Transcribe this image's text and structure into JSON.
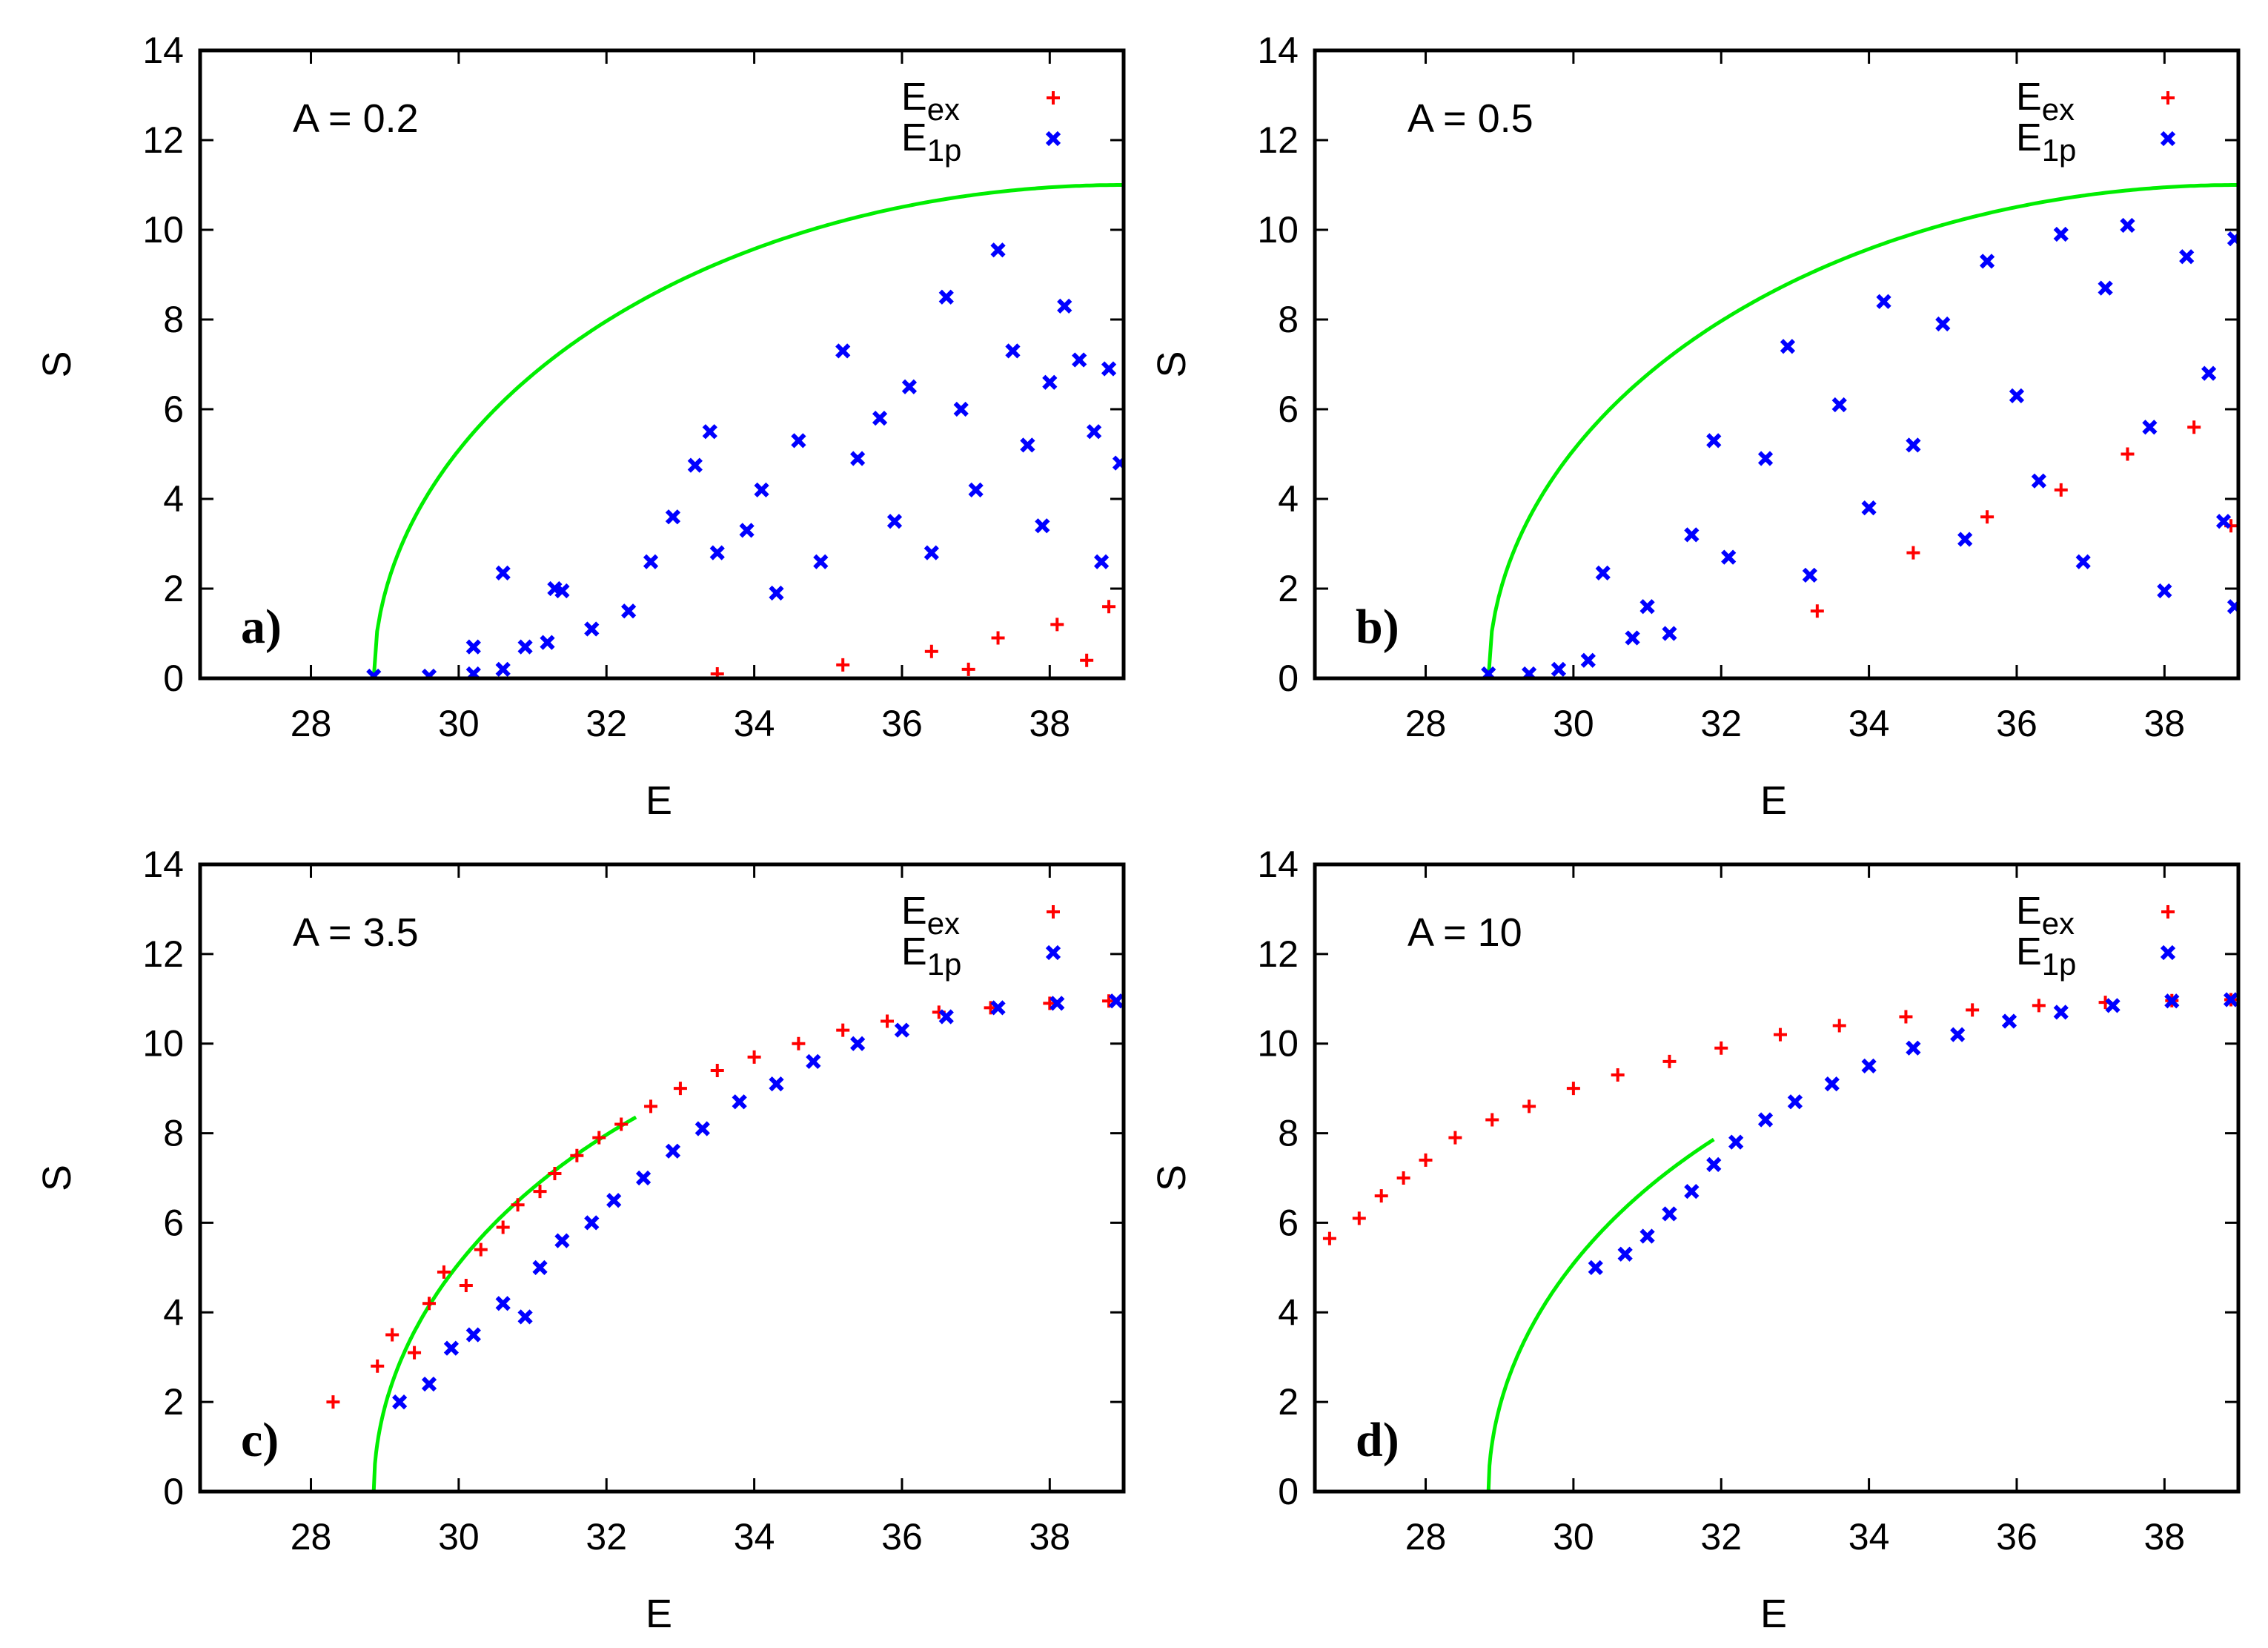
{
  "figure": {
    "description_axes": "S versus E scatter plots for four values of A"
  },
  "chart_data": [
    {
      "type": "scatter",
      "panel_label": "a)",
      "annotation": "A = 0.2",
      "xlabel": "E",
      "ylabel": "S",
      "xlim": [
        26.5,
        39
      ],
      "ylim": [
        0,
        14
      ],
      "xticks": [
        "28",
        "30",
        "32",
        "34",
        "36",
        "38"
      ],
      "yticks": [
        "0",
        "2",
        "4",
        "6",
        "8",
        "10",
        "12",
        "14"
      ],
      "legend_position": "top-right",
      "colors": {
        "exact": "#ff0000",
        "one_particle": "#0000ff",
        "bound": "#00ee00"
      },
      "bound_curve": {
        "name": "bound",
        "E0": 28.85,
        "E1": 39,
        "Smax": 11
      },
      "series": [
        {
          "name": "E_ex",
          "label": "E",
          "sub": "ex",
          "points": [
            [
              33.5,
              0.1
            ],
            [
              35.2,
              0.3
            ],
            [
              36.4,
              0.6
            ],
            [
              37.3,
              0.9
            ],
            [
              38.1,
              1.2
            ],
            [
              38.8,
              1.6
            ],
            [
              36.9,
              0.2
            ],
            [
              38.5,
              0.4
            ]
          ]
        },
        {
          "name": "E_1p",
          "label": "E",
          "sub": "1p",
          "points": [
            [
              28.85,
              0.05
            ],
            [
              29.6,
              0.05
            ],
            [
              30.2,
              0.1
            ],
            [
              30.6,
              0.2
            ],
            [
              30.2,
              0.7
            ],
            [
              30.6,
              2.35
            ],
            [
              30.9,
              0.7
            ],
            [
              31.2,
              0.8
            ],
            [
              31.3,
              2.0
            ],
            [
              31.4,
              1.95
            ],
            [
              31.8,
              1.1
            ],
            [
              32.3,
              1.5
            ],
            [
              32.6,
              2.6
            ],
            [
              32.9,
              3.6
            ],
            [
              33.2,
              4.75
            ],
            [
              33.4,
              5.5
            ],
            [
              33.5,
              2.8
            ],
            [
              33.9,
              3.3
            ],
            [
              34.1,
              4.2
            ],
            [
              34.3,
              1.9
            ],
            [
              34.6,
              5.3
            ],
            [
              34.9,
              2.6
            ],
            [
              35.2,
              7.3
            ],
            [
              35.4,
              4.9
            ],
            [
              35.7,
              5.8
            ],
            [
              35.9,
              3.5
            ],
            [
              36.1,
              6.5
            ],
            [
              36.4,
              2.8
            ],
            [
              36.6,
              8.5
            ],
            [
              36.8,
              6.0
            ],
            [
              37.0,
              4.2
            ],
            [
              37.3,
              9.55
            ],
            [
              37.5,
              7.3
            ],
            [
              37.7,
              5.2
            ],
            [
              37.9,
              3.4
            ],
            [
              38.0,
              6.6
            ],
            [
              38.2,
              8.3
            ],
            [
              38.4,
              7.1
            ],
            [
              38.6,
              5.5
            ],
            [
              38.8,
              6.9
            ],
            [
              38.95,
              4.8
            ],
            [
              38.7,
              2.6
            ]
          ]
        }
      ]
    },
    {
      "type": "scatter",
      "panel_label": "b)",
      "annotation": "A = 0.5",
      "xlabel": "E",
      "ylabel": "S",
      "xlim": [
        26.5,
        39
      ],
      "ylim": [
        0,
        14
      ],
      "xticks": [
        "28",
        "30",
        "32",
        "34",
        "36",
        "38"
      ],
      "yticks": [
        "0",
        "2",
        "4",
        "6",
        "8",
        "10",
        "12",
        "14"
      ],
      "legend_position": "top-right",
      "colors": {
        "exact": "#ff0000",
        "one_particle": "#0000ff",
        "bound": "#00ee00"
      },
      "bound_curve": {
        "name": "bound",
        "E0": 28.85,
        "E1": 39,
        "Smax": 11
      },
      "series": [
        {
          "name": "E_ex",
          "label": "E",
          "sub": "ex",
          "points": [
            [
              33.3,
              1.5
            ],
            [
              34.6,
              2.8
            ],
            [
              35.6,
              3.6
            ],
            [
              36.6,
              4.2
            ],
            [
              37.5,
              5.0
            ],
            [
              38.4,
              5.6
            ],
            [
              38.9,
              3.4
            ]
          ]
        },
        {
          "name": "E_1p",
          "label": "E",
          "sub": "1p",
          "points": [
            [
              28.85,
              0.1
            ],
            [
              29.4,
              0.1
            ],
            [
              29.8,
              0.2
            ],
            [
              30.2,
              0.4
            ],
            [
              30.4,
              2.35
            ],
            [
              30.8,
              0.9
            ],
            [
              31.0,
              1.6
            ],
            [
              31.3,
              1.0
            ],
            [
              31.6,
              3.2
            ],
            [
              31.9,
              5.3
            ],
            [
              32.1,
              2.7
            ],
            [
              32.6,
              4.9
            ],
            [
              32.9,
              7.4
            ],
            [
              33.2,
              2.3
            ],
            [
              33.6,
              6.1
            ],
            [
              34.0,
              3.8
            ],
            [
              34.2,
              8.4
            ],
            [
              34.6,
              5.2
            ],
            [
              35.0,
              7.9
            ],
            [
              35.3,
              3.1
            ],
            [
              35.6,
              9.3
            ],
            [
              36.0,
              6.3
            ],
            [
              36.3,
              4.4
            ],
            [
              36.6,
              9.9
            ],
            [
              36.9,
              2.6
            ],
            [
              37.2,
              8.7
            ],
            [
              37.5,
              10.1
            ],
            [
              37.8,
              5.6
            ],
            [
              38.0,
              1.95
            ],
            [
              38.3,
              9.4
            ],
            [
              38.6,
              6.8
            ],
            [
              38.8,
              3.5
            ],
            [
              38.95,
              1.6
            ],
            [
              38.95,
              9.8
            ]
          ]
        }
      ]
    },
    {
      "type": "scatter",
      "panel_label": "c)",
      "annotation": "A = 3.5",
      "xlabel": "E",
      "ylabel": "S",
      "xlim": [
        26.5,
        39
      ],
      "ylim": [
        0,
        14
      ],
      "xticks": [
        "28",
        "30",
        "32",
        "34",
        "36",
        "38"
      ],
      "yticks": [
        "0",
        "2",
        "4",
        "6",
        "8",
        "10",
        "12",
        "14"
      ],
      "legend_position": "top-right",
      "colors": {
        "exact": "#ff0000",
        "one_particle": "#0000ff",
        "bound": "#00ee00"
      },
      "bound_curve": {
        "name": "bound",
        "E0": 28.85,
        "E1": 39,
        "Smax": 11,
        "until": 32.4
      },
      "series": [
        {
          "name": "E_ex",
          "label": "E",
          "sub": "ex",
          "points": [
            [
              28.3,
              2.0
            ],
            [
              28.9,
              2.8
            ],
            [
              29.1,
              3.5
            ],
            [
              29.4,
              3.1
            ],
            [
              29.6,
              4.2
            ],
            [
              29.8,
              4.9
            ],
            [
              30.1,
              4.6
            ],
            [
              30.3,
              5.4
            ],
            [
              30.6,
              5.9
            ],
            [
              30.8,
              6.4
            ],
            [
              31.1,
              6.7
            ],
            [
              31.3,
              7.1
            ],
            [
              31.6,
              7.5
            ],
            [
              31.9,
              7.9
            ],
            [
              32.2,
              8.2
            ],
            [
              32.6,
              8.6
            ],
            [
              33.0,
              9.0
            ],
            [
              33.5,
              9.4
            ],
            [
              34.0,
              9.7
            ],
            [
              34.6,
              10.0
            ],
            [
              35.2,
              10.3
            ],
            [
              35.8,
              10.5
            ],
            [
              36.5,
              10.7
            ],
            [
              37.2,
              10.8
            ],
            [
              38.0,
              10.9
            ],
            [
              38.8,
              10.95
            ]
          ]
        },
        {
          "name": "E_1p",
          "label": "E",
          "sub": "1p",
          "points": [
            [
              29.2,
              2.0
            ],
            [
              29.6,
              2.4
            ],
            [
              29.9,
              3.2
            ],
            [
              30.2,
              3.5
            ],
            [
              30.6,
              4.2
            ],
            [
              30.9,
              3.9
            ],
            [
              31.1,
              5.0
            ],
            [
              31.4,
              5.6
            ],
            [
              31.8,
              6.0
            ],
            [
              32.1,
              6.5
            ],
            [
              32.5,
              7.0
            ],
            [
              32.9,
              7.6
            ],
            [
              33.3,
              8.1
            ],
            [
              33.8,
              8.7
            ],
            [
              34.3,
              9.1
            ],
            [
              34.8,
              9.6
            ],
            [
              35.4,
              10.0
            ],
            [
              36.0,
              10.3
            ],
            [
              36.6,
              10.6
            ],
            [
              37.3,
              10.8
            ],
            [
              38.1,
              10.9
            ],
            [
              38.9,
              10.95
            ]
          ]
        }
      ]
    },
    {
      "type": "scatter",
      "panel_label": "d)",
      "annotation": "A = 10",
      "xlabel": "E",
      "ylabel": "S",
      "xlim": [
        26.5,
        39
      ],
      "ylim": [
        0,
        14
      ],
      "xticks": [
        "28",
        "30",
        "32",
        "34",
        "36",
        "38"
      ],
      "yticks": [
        "0",
        "2",
        "4",
        "6",
        "8",
        "10",
        "12",
        "14"
      ],
      "legend_position": "top-right",
      "colors": {
        "exact": "#ff0000",
        "one_particle": "#0000ff",
        "bound": "#00ee00"
      },
      "bound_curve": {
        "name": "bound",
        "E0": 28.85,
        "E1": 39,
        "Smax": 11,
        "until": 31.9
      },
      "series": [
        {
          "name": "E_ex",
          "label": "E",
          "sub": "ex",
          "points": [
            [
              26.7,
              5.65
            ],
            [
              27.1,
              6.1
            ],
            [
              27.4,
              6.6
            ],
            [
              27.7,
              7.0
            ],
            [
              28.0,
              7.4
            ],
            [
              28.4,
              7.9
            ],
            [
              28.9,
              8.3
            ],
            [
              29.4,
              8.6
            ],
            [
              30.0,
              9.0
            ],
            [
              30.6,
              9.3
            ],
            [
              31.3,
              9.6
            ],
            [
              32.0,
              9.9
            ],
            [
              32.8,
              10.2
            ],
            [
              33.6,
              10.4
            ],
            [
              34.5,
              10.6
            ],
            [
              35.4,
              10.75
            ],
            [
              36.3,
              10.85
            ],
            [
              37.2,
              10.92
            ],
            [
              38.1,
              10.96
            ],
            [
              38.9,
              10.98
            ]
          ]
        },
        {
          "name": "E_1p",
          "label": "E",
          "sub": "1p",
          "points": [
            [
              30.3,
              5.0
            ],
            [
              30.7,
              5.3
            ],
            [
              31.0,
              5.7
            ],
            [
              31.3,
              6.2
            ],
            [
              31.6,
              6.7
            ],
            [
              31.9,
              7.3
            ],
            [
              32.2,
              7.8
            ],
            [
              32.6,
              8.3
            ],
            [
              33.0,
              8.7
            ],
            [
              33.5,
              9.1
            ],
            [
              34.0,
              9.5
            ],
            [
              34.6,
              9.9
            ],
            [
              35.2,
              10.2
            ],
            [
              35.9,
              10.5
            ],
            [
              36.6,
              10.7
            ],
            [
              37.3,
              10.85
            ],
            [
              38.1,
              10.95
            ],
            [
              38.9,
              10.98
            ]
          ]
        }
      ]
    }
  ]
}
